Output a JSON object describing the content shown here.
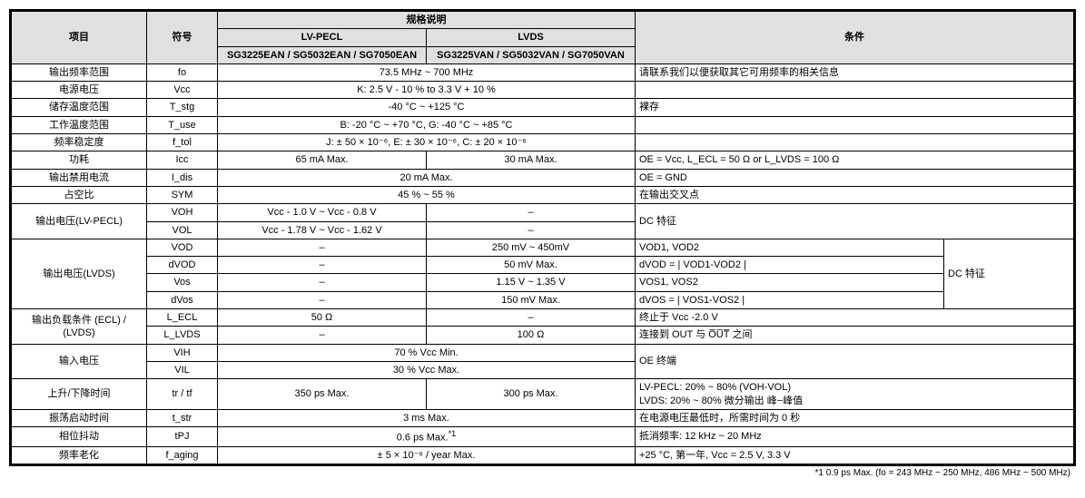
{
  "header": {
    "item": "项目",
    "symbol": "符号",
    "spec_title": "规格说明",
    "lvpecl_title": "LV-PECL",
    "lvpecl_sub": "SG3225EAN / SG5032EAN / SG7050EAN",
    "lvds_title": "LVDS",
    "lvds_sub": "SG3225VAN / SG5032VAN / SG7050VAN",
    "condition": "条件"
  },
  "r_freq": {
    "item": "输出频率范围",
    "sym": "fo",
    "val": "73.5 MHz ~ 700 MHz",
    "cond": "请联系我们以便获取其它可用频率的相关信息"
  },
  "r_vcc": {
    "item": "电源电压",
    "sym": "Vcc",
    "val": "K: 2.5 V - 10 % to 3.3 V + 10 %",
    "cond": ""
  },
  "r_tstg": {
    "item": "储存温度范围",
    "sym": "T_stg",
    "val": "-40 °C ~ +125 °C",
    "cond": "裸存"
  },
  "r_tuse": {
    "item": "工作温度范围",
    "sym": "T_use",
    "val": "B: -20 °C ~ +70 °C, G: -40 °C ~ +85 °C",
    "cond": ""
  },
  "r_ftol": {
    "item": "频率稳定度",
    "sym": "f_tol",
    "val": "J: ± 50 × 10⁻⁶, E: ± 30 × 10⁻⁶, C: ± 20 × 10⁻⁶",
    "cond": ""
  },
  "r_icc": {
    "item": "功耗",
    "sym": "Icc",
    "v1": "65 mA Max.",
    "v2": "30 mA Max.",
    "cond": "OE = Vcc, L_ECL = 50 Ω or L_LVDS = 100 Ω"
  },
  "r_idis": {
    "item": "输出禁用电流",
    "sym": "I_dis",
    "val": "20 mA Max.",
    "cond": "OE = GND"
  },
  "r_sym": {
    "item": "占空比",
    "sym": "SYM",
    "val": "45 % ~ 55 %",
    "cond": "在输出交叉点"
  },
  "r_lvpecl": {
    "item": "输出电压(LV-PECL)",
    "cond": "DC 特征",
    "voh_sym": "VOH",
    "voh_v1": "Vcc - 1.0 V ~ Vcc - 0.8 V",
    "voh_v2": "–",
    "vol_sym": "VOL",
    "vol_v1": "Vcc - 1.78 V ~ Vcc - 1.62 V",
    "vol_v2": "–"
  },
  "r_lvds": {
    "item": "输出电压(LVDS)",
    "cond": "DC 特征",
    "vod": {
      "sym": "VOD",
      "v1": "–",
      "v2": "250 mV ~ 450mV",
      "c": "VOD1, VOD2"
    },
    "dvod": {
      "sym": "dVOD",
      "v1": "–",
      "v2": "50 mV Max.",
      "c": "dVOD = | VOD1-VOD2 |"
    },
    "vos": {
      "sym": "Vos",
      "v1": "–",
      "v2": "1.15 V ~ 1.35 V",
      "c": "VOS1, VOS2"
    },
    "dvos": {
      "sym": "dVos",
      "v1": "–",
      "v2": "150 mV Max.",
      "c": "dVOS = | VOS1-VOS2 |"
    }
  },
  "r_load": {
    "item": "输出负载条件 (ECL) / (LVDS)",
    "ecl": {
      "sym": "L_ECL",
      "v1": "50 Ω",
      "v2": "–",
      "c": "终止于  Vcc -2.0 V"
    },
    "lvds": {
      "sym": "L_LVDS",
      "v1": "–",
      "v2": "100 Ω",
      "c": "连接到 OUT  与 O̅U̅T̅ 之间"
    }
  },
  "r_vin": {
    "item": "输入电压",
    "cond": "OE 终端",
    "vih": {
      "sym": "VIH",
      "val": "70 % Vcc Min."
    },
    "vil": {
      "sym": "VIL",
      "val": "30 % Vcc Max."
    }
  },
  "r_trtf": {
    "item": "上升/下降时间",
    "sym": "tr / tf",
    "v1": "350 ps Max.",
    "v2": "300 ps Max.",
    "c1": "LV-PECL:  20% ~ 80% (VOH-VOL)",
    "c2": "LVDS:      20% ~ 80%  微分输出   峰−峰值"
  },
  "r_tstr": {
    "item": "振荡启动时间",
    "sym": "t_str",
    "val": "3 ms Max.",
    "cond": "在电源电压最低时，所需时间为 0  秒"
  },
  "r_tpj": {
    "item": "相位抖动",
    "sym": "tPJ",
    "val": "0.6 ps Max.",
    "sup": "*1",
    "cond": "抵消频率:  12 kHz ~ 20 MHz"
  },
  "r_aging": {
    "item": "频率老化",
    "sym": "f_aging",
    "val": "± 5 × 10⁻⁶ / year Max.",
    "cond": "+25 °C,  第一年, Vcc = 2.5 V, 3.3 V"
  },
  "footnote": "*1    0.9 ps Max. (fo = 243 MHz ~ 250 MHz, 486 MHz ~ 500 MHz)"
}
